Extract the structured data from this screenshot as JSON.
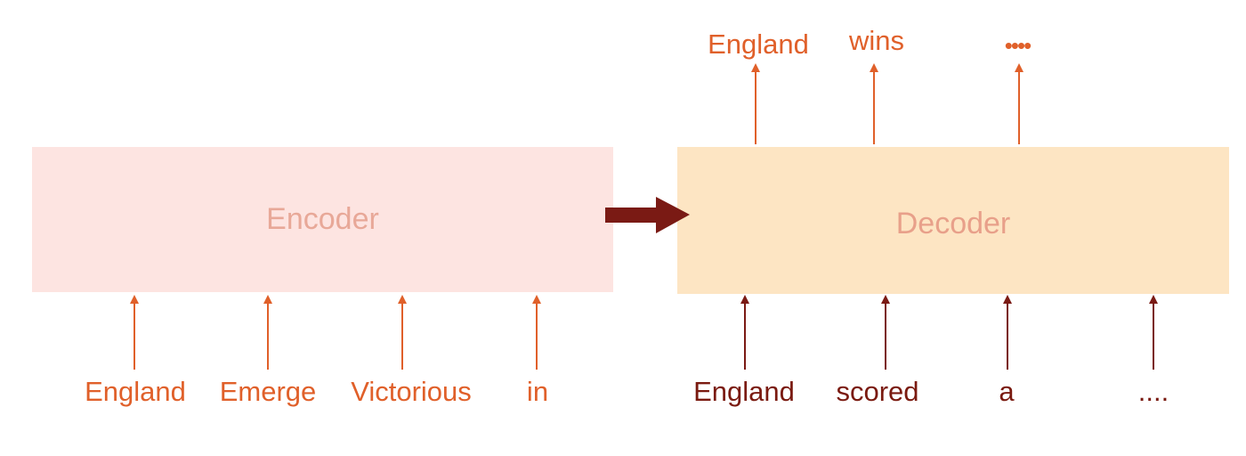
{
  "encoder": {
    "label": "Encoder",
    "inputs": [
      "England",
      "Emerge",
      "Victorious",
      "in"
    ]
  },
  "decoder": {
    "label": "Decoder",
    "inputs": [
      "England",
      "scored",
      "a",
      "...."
    ],
    "outputs": [
      "England",
      "wins",
      "••••"
    ]
  },
  "colors": {
    "encoder_fill": "#fde4e1",
    "decoder_fill": "#fde5c3",
    "encoder_text": "#e8a898",
    "decoder_text": "#e8a08a",
    "encoder_word": "#e0602a",
    "decoder_input_word": "#7a1a10",
    "decoder_output_word": "#e0602a",
    "link_arrow": "#7a1a14"
  }
}
